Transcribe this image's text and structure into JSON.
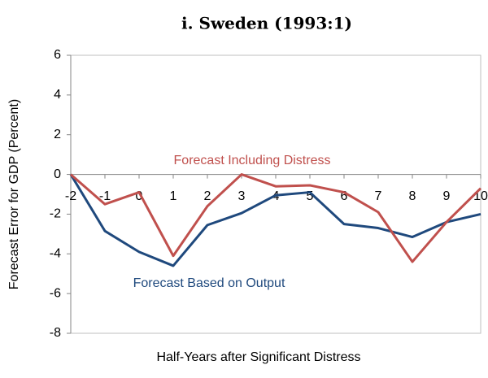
{
  "chart_data": {
    "type": "line",
    "title": "i.  Sweden (1993:1)",
    "xlabel": "Half-Years after Significant Distress",
    "ylabel": "Forecast Error for GDP (Percent)",
    "x": [
      -2,
      -1,
      0,
      1,
      2,
      3,
      4,
      5,
      6,
      7,
      8,
      9,
      10
    ],
    "xlim": [
      -2,
      10
    ],
    "xticks": [
      -2,
      -1,
      0,
      1,
      2,
      3,
      4,
      5,
      6,
      7,
      8,
      9,
      10
    ],
    "ylim": [
      -8,
      6
    ],
    "yticks": [
      -8,
      -6,
      -4,
      -2,
      0,
      2,
      4,
      6
    ],
    "series": [
      {
        "name": "Forecast Including Distress",
        "color": "#c0504d",
        "values": [
          0,
          -1.5,
          -0.9,
          -4.1,
          -1.6,
          0,
          -0.6,
          -0.55,
          -0.9,
          -1.9,
          -4.4,
          -2.4,
          -0.7
        ]
      },
      {
        "name": "Forecast Based on Output",
        "color": "#1f497d",
        "values": [
          0,
          -2.85,
          -3.9,
          -4.6,
          -2.55,
          -1.95,
          -1.05,
          -0.9,
          -2.5,
          -2.7,
          -3.15,
          -2.4,
          -2.0
        ]
      }
    ]
  }
}
